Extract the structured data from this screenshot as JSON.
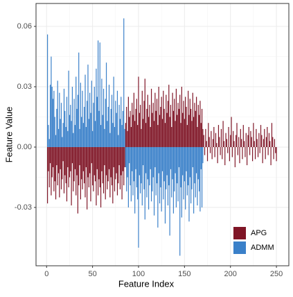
{
  "chart_data": {
    "type": "bar",
    "x_label": "Feature Index",
    "y_label": "Feature Value",
    "x": [
      1,
      2,
      3,
      4,
      5,
      6,
      7,
      8,
      9,
      10,
      11,
      12,
      13,
      14,
      15,
      16,
      17,
      18,
      19,
      20,
      21,
      22,
      23,
      24,
      25,
      26,
      27,
      28,
      29,
      30,
      31,
      32,
      33,
      34,
      35,
      36,
      37,
      38,
      39,
      40,
      41,
      42,
      43,
      44,
      45,
      46,
      47,
      48,
      49,
      50,
      51,
      52,
      53,
      54,
      55,
      56,
      57,
      58,
      59,
      60,
      61,
      62,
      63,
      64,
      65,
      66,
      67,
      68,
      69,
      70,
      71,
      72,
      73,
      74,
      75,
      76,
      77,
      78,
      79,
      80,
      81,
      82,
      83,
      84,
      85,
      86,
      87,
      88,
      89,
      90,
      91,
      92,
      93,
      94,
      95,
      96,
      97,
      98,
      99,
      100,
      101,
      102,
      103,
      104,
      105,
      106,
      107,
      108,
      109,
      110,
      111,
      112,
      113,
      114,
      115,
      116,
      117,
      118,
      119,
      120,
      121,
      122,
      123,
      124,
      125,
      126,
      127,
      128,
      129,
      130,
      131,
      132,
      133,
      134,
      135,
      136,
      137,
      138,
      139,
      140,
      141,
      142,
      143,
      144,
      145,
      146,
      147,
      148,
      149,
      150,
      151,
      152,
      153,
      154,
      155,
      156,
      157,
      158,
      159,
      160,
      161,
      162,
      163,
      164,
      165,
      166,
      167,
      168,
      169,
      170,
      171,
      172,
      173,
      174,
      175,
      176,
      177,
      178,
      179,
      180,
      181,
      182,
      183,
      184,
      185,
      186,
      187,
      188,
      189,
      190,
      191,
      192,
      193,
      194,
      195,
      196,
      197,
      198,
      199,
      200,
      201,
      202,
      203,
      204,
      205,
      206,
      207,
      208,
      209,
      210,
      211,
      212,
      213,
      214,
      215,
      216,
      217,
      218,
      219,
      220,
      221,
      222,
      223,
      224,
      225,
      226,
      227,
      228,
      229,
      230,
      231,
      232,
      233,
      234,
      235,
      236,
      237,
      238,
      239,
      240,
      241,
      242,
      243,
      244,
      245,
      246,
      247,
      248,
      249,
      250
    ],
    "series": [
      {
        "name": "APG",
        "color": "#7f1526",
        "values": [
          -0.028,
          -0.012,
          -0.02,
          -0.008,
          -0.024,
          -0.015,
          -0.01,
          -0.022,
          -0.017,
          -0.026,
          -0.009,
          -0.019,
          -0.013,
          -0.025,
          -0.011,
          -0.021,
          -0.016,
          -0.007,
          -0.023,
          -0.014,
          -0.018,
          -0.027,
          -0.01,
          -0.02,
          -0.015,
          -0.012,
          -0.029,
          -0.008,
          -0.022,
          -0.017,
          -0.011,
          -0.024,
          -0.014,
          -0.033,
          -0.019,
          -0.009,
          -0.026,
          -0.016,
          -0.021,
          -0.012,
          -0.018,
          -0.025,
          -0.01,
          -0.031,
          -0.015,
          -0.02,
          -0.013,
          -0.027,
          -0.008,
          -0.019,
          -0.022,
          -0.014,
          -0.017,
          -0.029,
          -0.011,
          -0.024,
          -0.016,
          -0.02,
          -0.03,
          -0.012,
          -0.018,
          -0.023,
          -0.009,
          -0.026,
          -0.014,
          -0.021,
          -0.017,
          -0.011,
          -0.025,
          -0.015,
          -0.019,
          -0.028,
          -0.01,
          -0.022,
          -0.016,
          -0.013,
          -0.024,
          -0.018,
          -0.009,
          -0.021,
          -0.014,
          -0.026,
          -0.012,
          -0.019,
          -0.01,
          0.012,
          0.02,
          0.008,
          0.025,
          0.015,
          0.018,
          0.01,
          0.022,
          0.016,
          0.027,
          0.013,
          0.019,
          0.024,
          0.011,
          0.035,
          0.017,
          0.021,
          0.009,
          0.028,
          0.014,
          0.023,
          0.034,
          0.012,
          0.019,
          0.026,
          0.015,
          0.021,
          0.01,
          0.029,
          0.017,
          0.022,
          0.013,
          0.027,
          0.018,
          0.024,
          0.011,
          0.03,
          0.016,
          0.02,
          0.025,
          0.014,
          0.028,
          0.019,
          0.012,
          0.026,
          0.017,
          0.023,
          0.031,
          0.015,
          0.021,
          0.01,
          0.027,
          0.018,
          0.024,
          0.013,
          0.029,
          0.016,
          0.022,
          0.019,
          0.026,
          0.012,
          0.03,
          0.017,
          0.023,
          0.014,
          0.025,
          0.02,
          0.011,
          0.028,
          0.016,
          0.024,
          0.019,
          0.013,
          0.027,
          0.015,
          0.022,
          0.018,
          0.025,
          0.01,
          0.021,
          0.016,
          0.023,
          0.012,
          0.019,
          0.009,
          0.006,
          -0.004,
          0.009,
          0.003,
          -0.007,
          0.012,
          0.005,
          -0.003,
          0.008,
          -0.006,
          0.004,
          0.01,
          -0.005,
          0.007,
          0.002,
          -0.008,
          0.011,
          0.005,
          -0.004,
          0.009,
          -0.006,
          0.013,
          0.003,
          -0.009,
          0.007,
          0.004,
          -0.003,
          0.01,
          -0.007,
          0.006,
          0.015,
          -0.005,
          0.008,
          0.003,
          -0.01,
          0.006,
          0.012,
          -0.004,
          0.005,
          -0.008,
          0.009,
          0.004,
          -0.006,
          0.011,
          0.003,
          -0.005,
          0.007,
          -0.009,
          0.006,
          0.01,
          -0.004,
          0.008,
          0.005,
          -0.007,
          0.012,
          0.003,
          -0.006,
          0.009,
          0.004,
          -0.005,
          0.007,
          -0.003,
          0.011,
          0.006,
          -0.008,
          0.004,
          0.009,
          -0.006,
          0.005,
          0.01,
          -0.004,
          0.007,
          0.003,
          -0.009,
          0.012,
          0.005,
          -0.006,
          0.004,
          -0.003,
          -0.007
        ]
      },
      {
        "name": "ADMM",
        "color": "#3a80c9",
        "values": [
          0.056,
          0.011,
          0.004,
          0.031,
          0.045,
          0.03,
          0.024,
          0.028,
          0.015,
          0.006,
          0.019,
          0.033,
          0.009,
          0.027,
          0.014,
          0.022,
          0.005,
          0.012,
          0.029,
          0.018,
          0.01,
          0.025,
          0.008,
          0.038,
          0.016,
          0.021,
          0.013,
          0.03,
          0.007,
          0.024,
          0.011,
          0.035,
          0.019,
          0.026,
          0.047,
          0.009,
          0.032,
          0.015,
          0.028,
          0.012,
          0.02,
          0.036,
          0.01,
          0.023,
          0.041,
          0.014,
          0.027,
          0.017,
          0.033,
          0.008,
          0.022,
          0.03,
          0.013,
          0.039,
          0.025,
          0.053,
          0.018,
          0.052,
          0.011,
          0.034,
          0.016,
          0.029,
          0.009,
          0.024,
          0.042,
          0.013,
          0.02,
          0.031,
          0.007,
          0.019,
          0.026,
          0.012,
          0.035,
          0.01,
          0.023,
          0.017,
          0.028,
          0.006,
          0.021,
          0.014,
          0.025,
          0.011,
          0.018,
          0.064,
          0.009,
          -0.01,
          -0.022,
          -0.015,
          -0.03,
          -0.008,
          -0.019,
          -0.027,
          -0.012,
          -0.024,
          -0.017,
          -0.033,
          -0.011,
          -0.02,
          -0.026,
          -0.05,
          -0.014,
          -0.023,
          -0.018,
          -0.029,
          -0.009,
          -0.021,
          -0.036,
          -0.013,
          -0.025,
          -0.016,
          -0.031,
          -0.019,
          -0.011,
          -0.027,
          -0.022,
          -0.015,
          -0.034,
          -0.01,
          -0.024,
          -0.018,
          -0.04,
          -0.013,
          -0.028,
          -0.02,
          -0.032,
          -0.012,
          -0.026,
          -0.017,
          -0.038,
          -0.021,
          -0.014,
          -0.029,
          -0.019,
          -0.044,
          -0.011,
          -0.025,
          -0.016,
          -0.033,
          -0.022,
          -0.013,
          -0.03,
          -0.018,
          -0.027,
          -0.01,
          -0.054,
          -0.02,
          -0.035,
          -0.014,
          -0.026,
          -0.017,
          -0.031,
          -0.012,
          -0.024,
          -0.019,
          -0.037,
          -0.015,
          -0.028,
          -0.021,
          -0.01,
          -0.033,
          -0.018,
          -0.025,
          -0.013,
          -0.029,
          -0.016,
          -0.022,
          -0.032,
          -0.011,
          -0.03,
          -0.008,
          0,
          0,
          0,
          0,
          0,
          0,
          0,
          0,
          0,
          0,
          0,
          0,
          0,
          0,
          0,
          0,
          0,
          0,
          0,
          0,
          0,
          0,
          0,
          0,
          0,
          0,
          0,
          0,
          0,
          0,
          0,
          0,
          0,
          0,
          0,
          0,
          0,
          0,
          0,
          0,
          0,
          0,
          0,
          0,
          0,
          0,
          0,
          0,
          0,
          0,
          0,
          0,
          0,
          0,
          0,
          0,
          0,
          0,
          0,
          0,
          0,
          0,
          0,
          0,
          0,
          0,
          0,
          0,
          0,
          0,
          0,
          0,
          0,
          0,
          0,
          0,
          0,
          0,
          0,
          0
        ]
      }
    ],
    "xlim": [
      -11.5,
      263.5
    ],
    "xticks": [
      0,
      50,
      100,
      150,
      200,
      250
    ],
    "ylim": [
      -0.059,
      0.0714
    ],
    "yticks": [
      -0.03,
      {
        "value": 0,
        "label": "0.00"
      },
      0.03,
      0.06
    ],
    "grid": true,
    "legend": "bottom-right"
  }
}
